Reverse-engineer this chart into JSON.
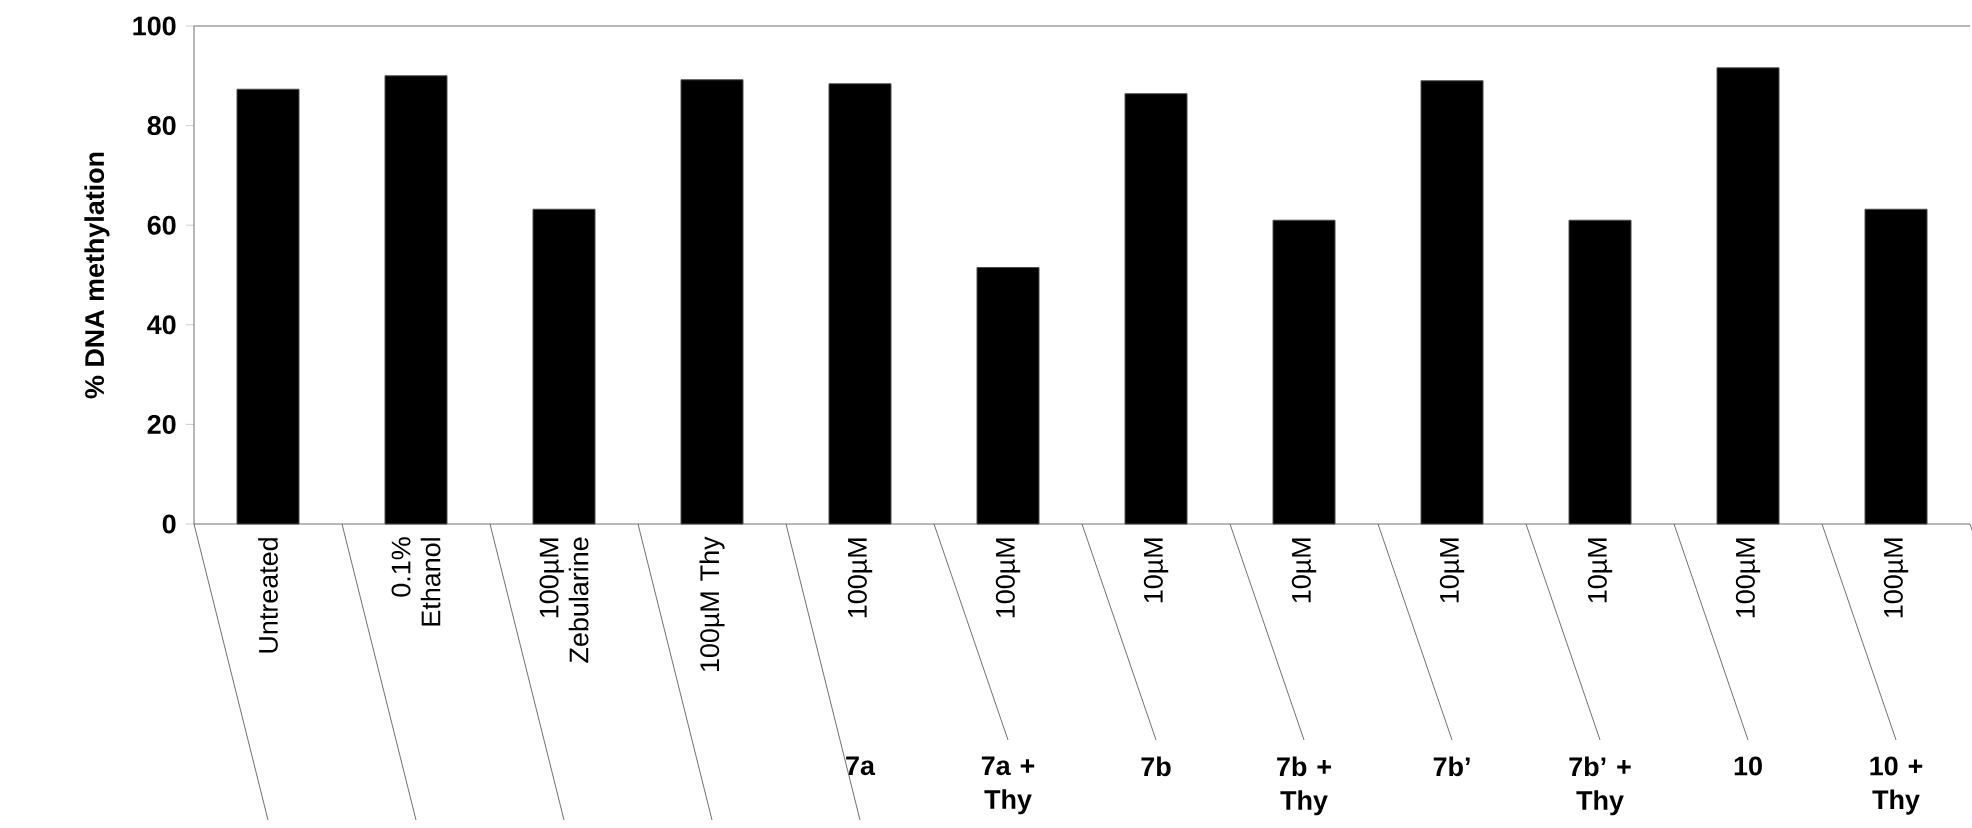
{
  "chart_data": {
    "type": "bar",
    "ylabel": "% DNA methylation",
    "categories": [
      "Untreated",
      "0.1% Ethanol",
      "100µM Zebularine",
      "100µM Thy",
      "100µM",
      "100µM",
      "10µM",
      "10µM",
      "10µM",
      "10µM",
      "100µM",
      "100µM"
    ],
    "values": [
      87.3,
      90.0,
      63.2,
      89.2,
      88.4,
      51.5,
      86.4,
      61.0,
      89.0,
      61.0,
      91.6,
      63.2
    ],
    "color": "#000000",
    "ylim": [
      0,
      100
    ],
    "yticks": [
      0,
      20,
      40,
      60,
      80,
      100
    ],
    "annotations": [
      "7a",
      "7a + Thy",
      "7b",
      "7b + Thy",
      "7b’",
      "7b’ + Thy",
      "10",
      "10 + Thy"
    ]
  }
}
